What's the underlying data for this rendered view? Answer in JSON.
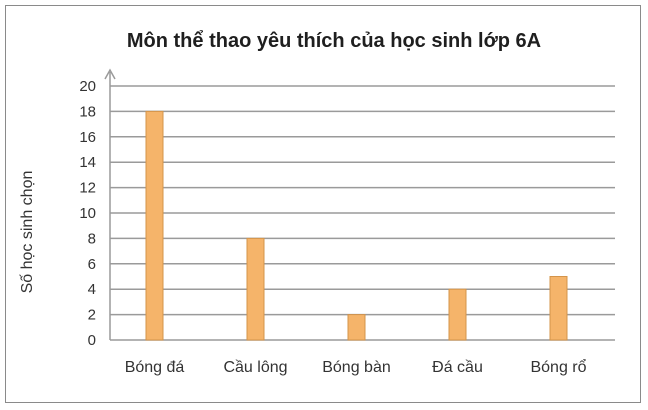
{
  "chart_data": {
    "type": "bar",
    "title": "Môn thể thao yêu thích của học sinh lớp 6A",
    "xlabel": "",
    "ylabel": "Số học sinh chọn",
    "categories": [
      "Bóng đá",
      "Cầu lông",
      "Bóng bàn",
      "Đá cầu",
      "Bóng rổ"
    ],
    "values": [
      18,
      8,
      2,
      4,
      5
    ],
    "ylim": [
      0,
      20
    ],
    "yticks": [
      0,
      2,
      4,
      6,
      8,
      10,
      12,
      14,
      16,
      18,
      20
    ],
    "grid": true,
    "legend": "none",
    "colors": {
      "bar": "#f5b46a",
      "bar_stroke": "#d4944a",
      "grid": "#9a9a9a",
      "axis": "#9a9a9a"
    }
  }
}
